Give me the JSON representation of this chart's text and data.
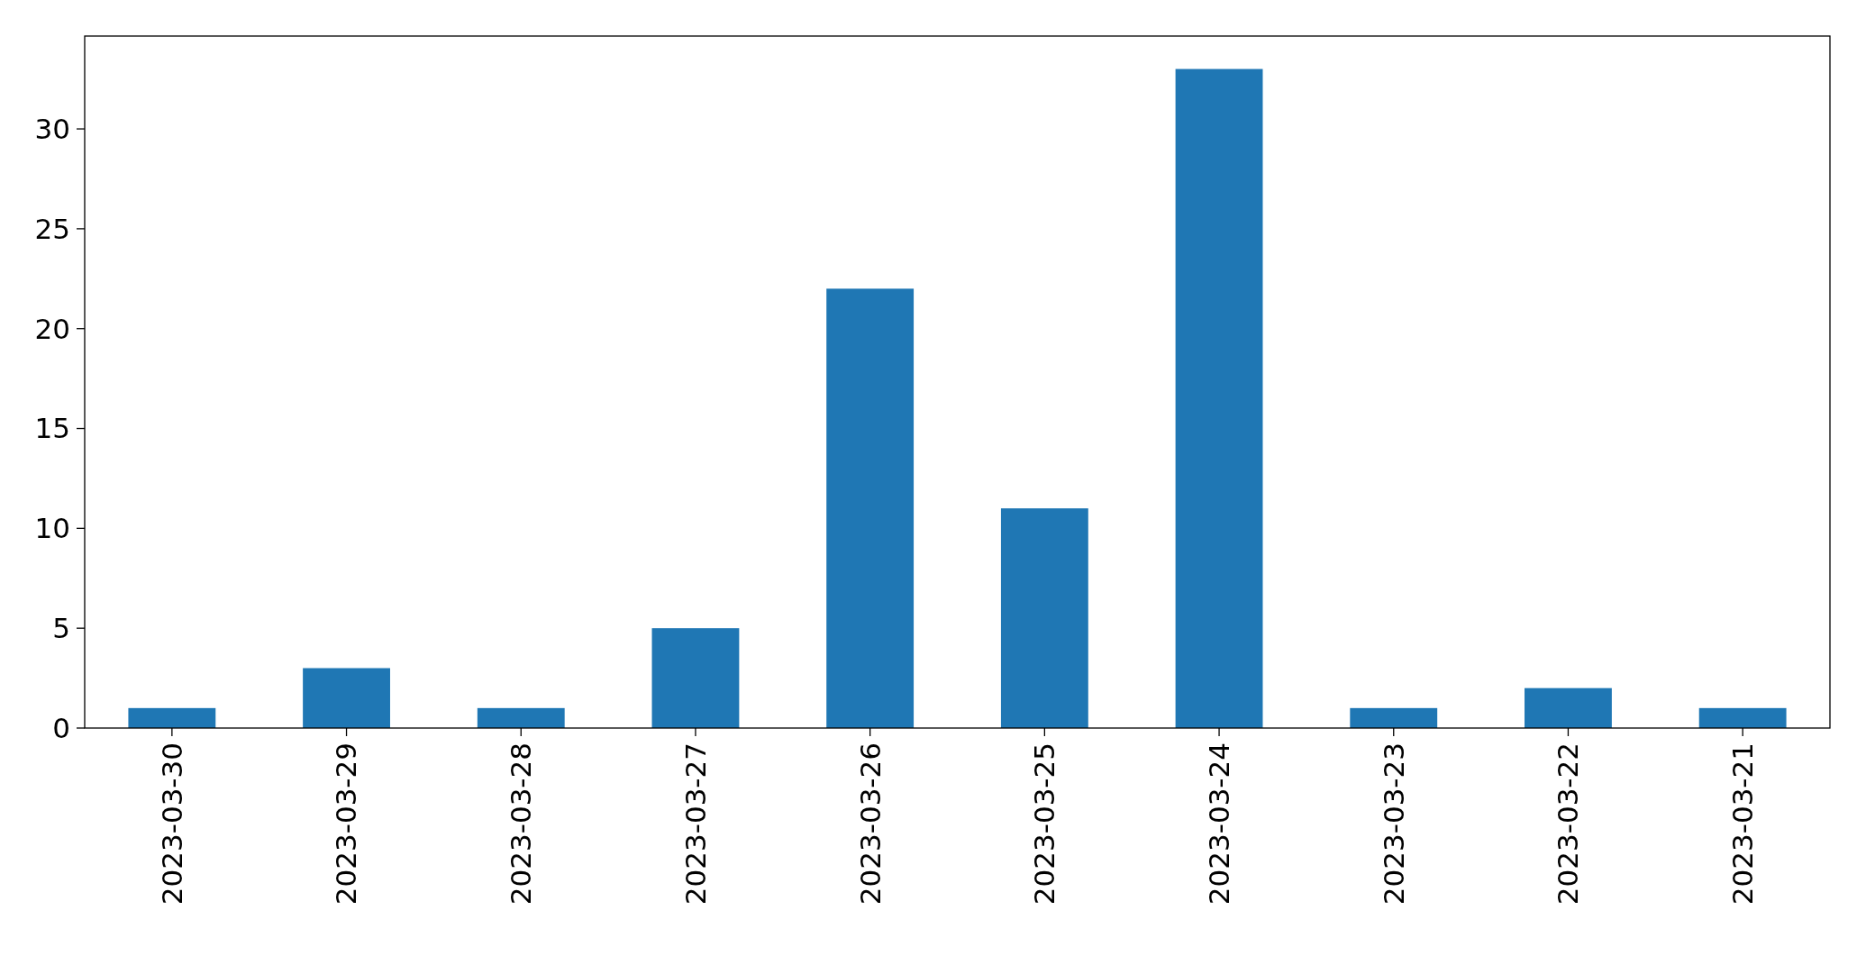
{
  "chart_data": {
    "type": "bar",
    "categories": [
      "2023-03-30",
      "2023-03-29",
      "2023-03-28",
      "2023-03-27",
      "2023-03-26",
      "2023-03-25",
      "2023-03-24",
      "2023-03-23",
      "2023-03-22",
      "2023-03-21"
    ],
    "values": [
      1,
      3,
      1,
      5,
      22,
      11,
      33,
      1,
      2,
      1
    ],
    "color": "#1f77b4",
    "ylim": [
      0,
      34.65
    ],
    "yticks": [
      0,
      5,
      10,
      15,
      20,
      25,
      30
    ],
    "grid": false
  }
}
